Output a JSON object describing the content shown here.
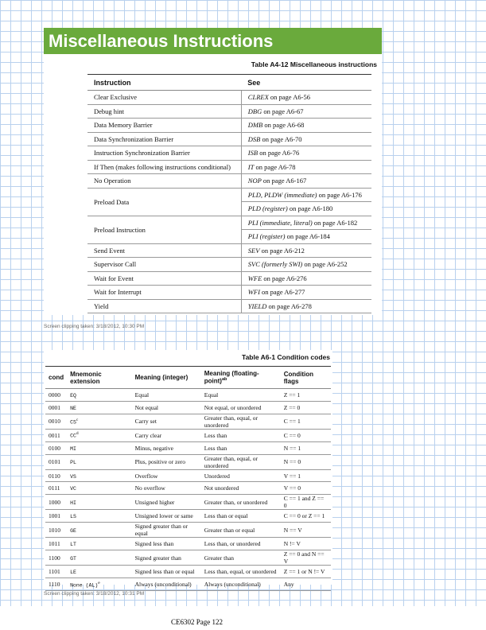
{
  "header": {
    "title": "Miscellaneous Instructions"
  },
  "table1": {
    "caption": "Table A4-12 Miscellaneous instructions",
    "columns": [
      "Instruction",
      "See"
    ],
    "rows": [
      {
        "instruction": "Clear Exclusive",
        "see": [
          {
            "name": "CLREX",
            "page": "on page A6-56"
          }
        ]
      },
      {
        "instruction": "Debug hint",
        "see": [
          {
            "name": "DBG",
            "page": "on page A6-67"
          }
        ]
      },
      {
        "instruction": "Data Memory Barrier",
        "see": [
          {
            "name": "DMB",
            "page": "on page A6-68"
          }
        ]
      },
      {
        "instruction": "Data Synchronization Barrier",
        "see": [
          {
            "name": "DSB",
            "page": "on page A6-70"
          }
        ]
      },
      {
        "instruction": "Instruction Synchronization Barrier",
        "see": [
          {
            "name": "ISB",
            "page": "on page A6-76"
          }
        ]
      },
      {
        "instruction": "If Then (makes following instructions conditional)",
        "see": [
          {
            "name": "IT",
            "page": "on page A6-78"
          }
        ]
      },
      {
        "instruction": "No Operation",
        "see": [
          {
            "name": "NOP",
            "page": "on page A6-167"
          }
        ]
      },
      {
        "instruction": "Preload Data",
        "see": [
          {
            "name": "PLD, PLDW (immediate)",
            "page": "on page A6-176"
          },
          {
            "name": "PLD (register)",
            "page": "on page A6-180"
          }
        ]
      },
      {
        "instruction": "Preload Instruction",
        "see": [
          {
            "name": "PLI (immediate, literal)",
            "page": "on page A6-182"
          },
          {
            "name": "PLI (register)",
            "page": "on page A6-184"
          }
        ]
      },
      {
        "instruction": "Send Event",
        "see": [
          {
            "name": "SEV",
            "page": "on page A6-212"
          }
        ]
      },
      {
        "instruction": "Supervisor Call",
        "see": [
          {
            "name": "SVC (formerly SWI)",
            "page": "on page A6-252"
          }
        ]
      },
      {
        "instruction": "Wait for Event",
        "see": [
          {
            "name": "WFE",
            "page": "on page A6-276"
          }
        ]
      },
      {
        "instruction": "Wait for Interrupt",
        "see": [
          {
            "name": "WFI",
            "page": "on page A6-277"
          }
        ]
      },
      {
        "instruction": "Yield",
        "see": [
          {
            "name": "YIELD",
            "page": "on page A6-278"
          }
        ]
      }
    ]
  },
  "clip1": "Screen clipping taken: 3/18/2012, 10:30 PM",
  "table2": {
    "caption": "Table A6-1 Condition codes",
    "columns": [
      {
        "label": "cond"
      },
      {
        "label": "Mnemonic extension"
      },
      {
        "label": "Meaning (integer)"
      },
      {
        "label": "Meaning (floating-point)",
        "note": "ab"
      },
      {
        "label": "Condition flags"
      }
    ],
    "rows": [
      {
        "cond": "0000",
        "mnemonic": "EQ",
        "int": "Equal",
        "fp": "Equal",
        "flags": "Z == 1"
      },
      {
        "cond": "0001",
        "mnemonic": "NE",
        "int": "Not equal",
        "fp": "Not equal, or unordered",
        "flags": "Z == 0"
      },
      {
        "cond": "0010",
        "mnemonic": "CS",
        "note": "c",
        "int": "Carry set",
        "fp": "Greater than, equal, or unordered",
        "flags": "C == 1"
      },
      {
        "cond": "0011",
        "mnemonic": "CC",
        "note": "d",
        "int": "Carry clear",
        "fp": "Less than",
        "flags": "C == 0"
      },
      {
        "cond": "0100",
        "mnemonic": "MI",
        "int": "Minus, negative",
        "fp": "Less than",
        "flags": "N == 1"
      },
      {
        "cond": "0101",
        "mnemonic": "PL",
        "int": "Plus, positive or zero",
        "fp": "Greater than, equal, or unordered",
        "flags": "N == 0"
      },
      {
        "cond": "0110",
        "mnemonic": "VS",
        "int": "Overflow",
        "fp": "Unordered",
        "flags": "V == 1"
      },
      {
        "cond": "0111",
        "mnemonic": "VC",
        "int": "No overflow",
        "fp": "Not unordered",
        "flags": "V == 0"
      },
      {
        "cond": "1000",
        "mnemonic": "HI",
        "int": "Unsigned higher",
        "fp": "Greater than, or unordered",
        "flags": "C == 1 and Z == 0"
      },
      {
        "cond": "1001",
        "mnemonic": "LS",
        "int": "Unsigned lower or same",
        "fp": "Less than or equal",
        "flags": "C == 0 or Z == 1"
      },
      {
        "cond": "1010",
        "mnemonic": "GE",
        "int": "Signed greater than or equal",
        "fp": "Greater than or equal",
        "flags": "N == V"
      },
      {
        "cond": "1011",
        "mnemonic": "LT",
        "int": "Signed less than",
        "fp": "Less than, or unordered",
        "flags": "N != V"
      },
      {
        "cond": "1100",
        "mnemonic": "GT",
        "int": "Signed greater than",
        "fp": "Greater than",
        "flags": "Z == 0 and N == V"
      },
      {
        "cond": "1101",
        "mnemonic": "LE",
        "int": "Signed less than or equal",
        "fp": "Less than, equal, or unordered",
        "flags": "Z == 1 or N != V"
      },
      {
        "cond": "1110",
        "mnemonic": "None (AL)",
        "note": "e",
        "int": "Always (unconditional)",
        "fp": "Always (unconditional)",
        "flags": "Any"
      }
    ]
  },
  "clip2": "Screen clipping taken: 3/18/2012, 10:31 PM",
  "footer": "CE6302 Page 122"
}
